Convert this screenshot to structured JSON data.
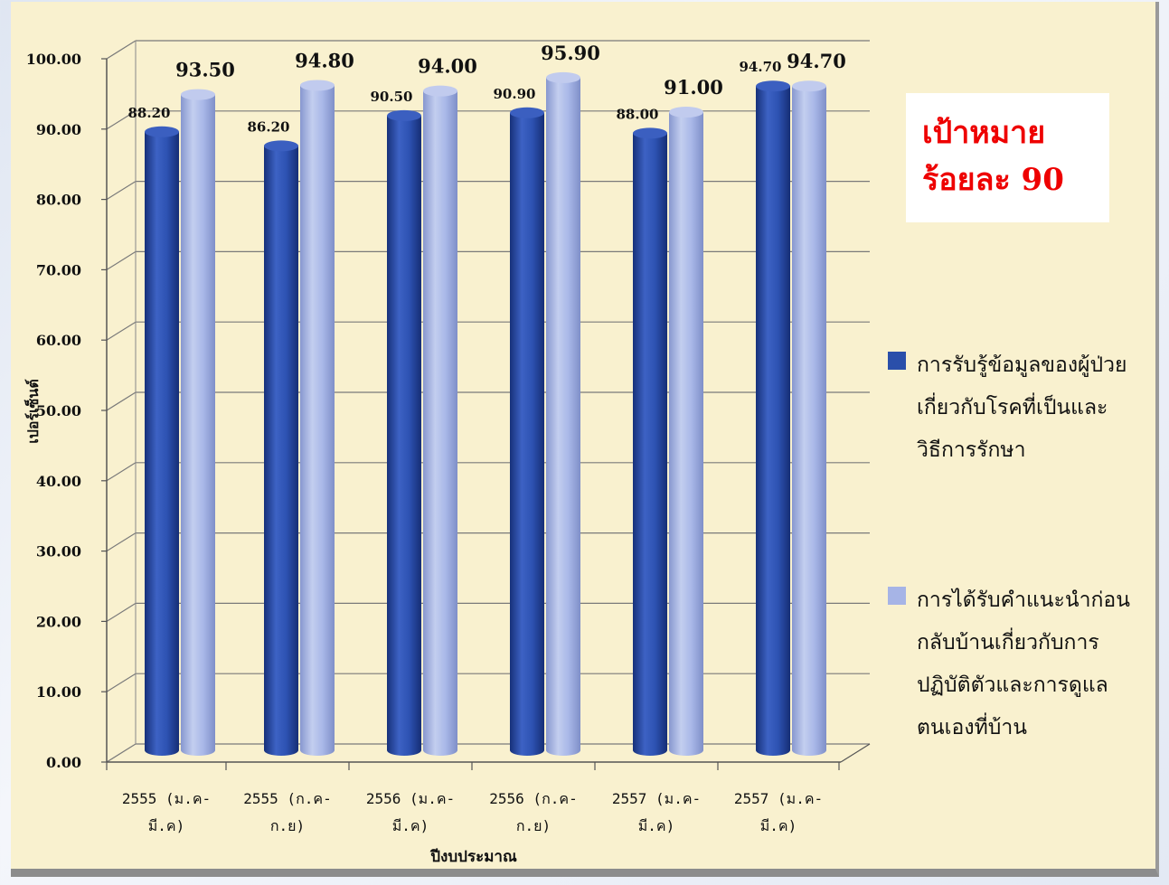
{
  "chart_data": {
    "type": "bar",
    "ylabel": "เปอร์เซ็นต์",
    "xlabel": "ปีงบประมาณ",
    "ylim": [
      0,
      100
    ],
    "yticks": [
      "0.00",
      "10.00",
      "20.00",
      "30.00",
      "40.00",
      "50.00",
      "60.00",
      "70.00",
      "80.00",
      "90.00",
      "100.00"
    ],
    "categories": [
      [
        "2555 (ม.ค-",
        "มี.ค)"
      ],
      [
        "2555 (ก.ค-",
        "ก.ย)"
      ],
      [
        "2556 (ม.ค-",
        "มี.ค)"
      ],
      [
        "2556 (ก.ค-",
        "ก.ย)"
      ],
      [
        "2557 (ม.ค-",
        "มี.ค)"
      ],
      [
        "2557 (ม.ค-",
        "มี.ค)"
      ]
    ],
    "series": [
      {
        "name": "การรับรู้ข้อมูลของผู้ป่วยเกี่ยวกับโรคที่เป็นและวิธีการรักษา",
        "color": "#2a4faa",
        "values": [
          88.2,
          86.2,
          90.5,
          90.9,
          88.0,
          94.7
        ],
        "labels": [
          "88.20",
          "86.20",
          "90.50",
          "90.90",
          "88.00",
          "94.70"
        ]
      },
      {
        "name": "การได้รับคำแนะนำก่อนกลับบ้านเกี่ยวกับการปฏิบัติตัวและการดูแลตนเองที่บ้าน",
        "color": "#a6b4e6",
        "values": [
          93.5,
          94.8,
          94.0,
          95.9,
          91.0,
          94.7
        ],
        "labels": [
          "93.50",
          "94.80",
          "94.00",
          "95.90",
          "91.00",
          "94.70"
        ]
      }
    ],
    "grid": true,
    "legend_position": "right"
  },
  "target": {
    "line1": "เป้าหมาย",
    "line2": "ร้อยละ  90"
  },
  "legend": [
    {
      "lines": [
        "การรับรู้ข้อมูลของผู้ป่วย",
        "เกี่ยวกับโรคที่เป็นและ",
        "วิธีการรักษา"
      ],
      "color": "#2a4faa"
    },
    {
      "lines": [
        "การได้รับคำแนะนำก่อน",
        "กลับบ้านเกี่ยวกับการ",
        "ปฏิบัติตัวและการดูแล",
        "ตนเองที่บ้าน"
      ],
      "color": "#a6b4e6"
    }
  ]
}
